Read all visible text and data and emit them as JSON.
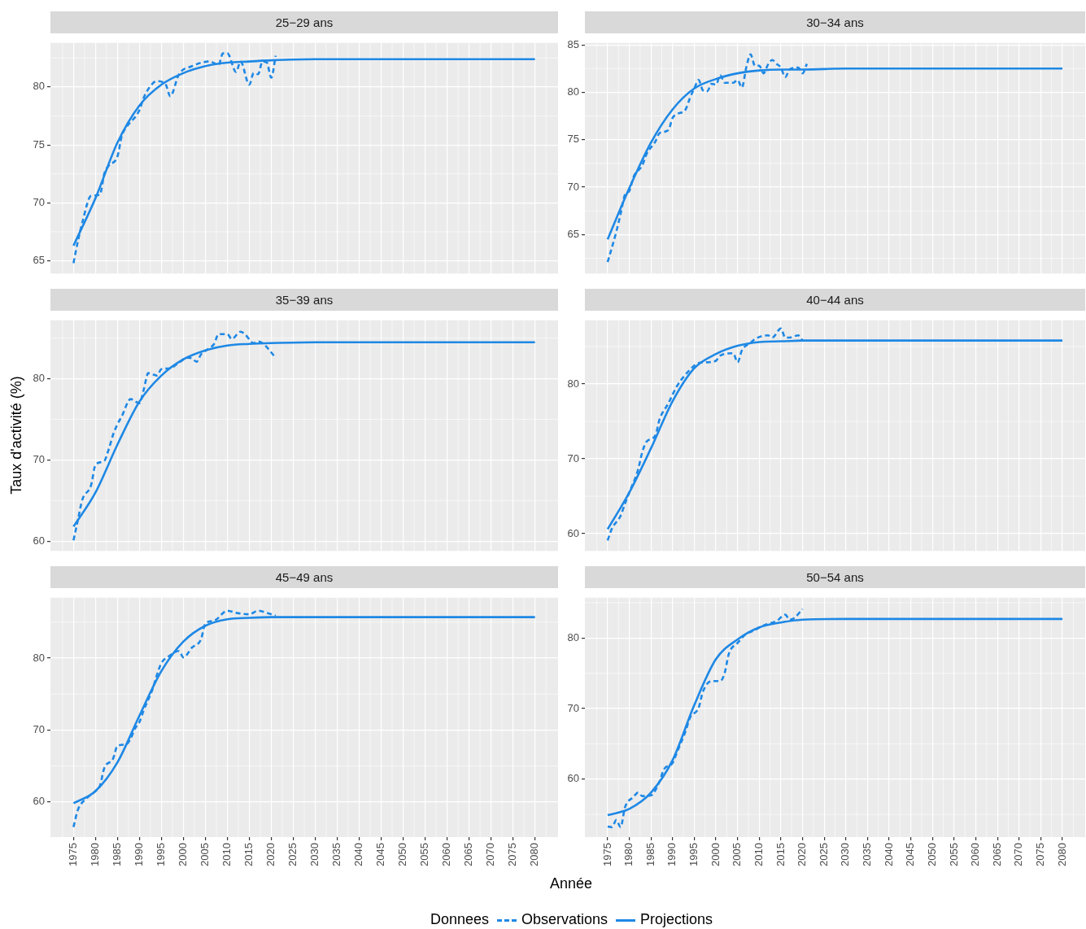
{
  "chart_data": [
    {
      "type": "line",
      "title": "25−29 ans",
      "legend": "bottom",
      "legend_title": "Donnees",
      "xlim": [
        1969.75,
        2085.25
      ],
      "xticks": [
        1975,
        1980,
        1985,
        1990,
        1995,
        2000,
        2005,
        2010,
        2015,
        2020,
        2025,
        2030,
        2035,
        2040,
        2045,
        2050,
        2055,
        2060,
        2065,
        2070,
        2075,
        2080
      ],
      "ylim": [
        63.9,
        83.8
      ],
      "yticks": [
        65,
        70,
        75,
        80
      ],
      "grid": true,
      "tick_labels": "y",
      "series": [
        {
          "name": "Observations",
          "color": "#1e88e5",
          "line_style": "dashed",
          "x": [
            1975,
            1976,
            1977,
            1979,
            1981,
            1982,
            1983,
            1985,
            1986,
            1987,
            1990,
            1991,
            1993,
            1994,
            1996,
            1997,
            1999,
            2002,
            2006,
            2008,
            2009,
            2010,
            2012,
            2013,
            2015,
            2016,
            2017,
            2018,
            2019,
            2020,
            2021
          ],
          "values": [
            64.8,
            66.7,
            68.3,
            70.6,
            70.7,
            72.5,
            73.2,
            74.0,
            75.8,
            76.5,
            78.0,
            79.1,
            80.3,
            80.5,
            80.2,
            79.2,
            81.1,
            81.8,
            82.2,
            81.9,
            82.9,
            82.9,
            81.3,
            82.2,
            80.2,
            81.2,
            81.1,
            82.2,
            82.1,
            80.8,
            82.7
          ]
        },
        {
          "name": "Projections",
          "color": "#1e88e5",
          "line_style": "solid",
          "x": [
            1975,
            1980,
            1985,
            1990,
            1995,
            2000,
            2005,
            2010,
            2015,
            2020,
            2030,
            2050,
            2080
          ],
          "values": [
            66.3,
            70.4,
            75.2,
            78.4,
            80.2,
            81.2,
            81.8,
            82.1,
            82.2,
            82.3,
            82.4,
            82.4,
            82.4
          ]
        }
      ]
    },
    {
      "type": "line",
      "title": "30−34 ans",
      "xlim": [
        1969.75,
        2085.25
      ],
      "xticks": [
        1975,
        1980,
        1985,
        1990,
        1995,
        2000,
        2005,
        2010,
        2015,
        2020,
        2025,
        2030,
        2035,
        2040,
        2045,
        2050,
        2055,
        2060,
        2065,
        2070,
        2075,
        2080
      ],
      "ylim": [
        60.9,
        85.2
      ],
      "yticks": [
        65,
        70,
        75,
        80,
        85
      ],
      "grid": true,
      "tick_labels": "y",
      "series": [
        {
          "color": "#1e88e5",
          "line_style": "dashed",
          "x": [
            1975,
            1977,
            1978,
            1979,
            1980,
            1981,
            1983,
            1984,
            1986,
            1987,
            1989,
            1990,
            1991,
            1993,
            1994,
            1995,
            1996,
            1997,
            1998,
            1999,
            2000,
            2001,
            2002,
            2004,
            2005,
            2006,
            2007,
            2008,
            2009,
            2010,
            2011,
            2012,
            2013,
            2014,
            2015,
            2016,
            2017,
            2019,
            2020,
            2021
          ],
          "values": [
            62.1,
            65.3,
            67.2,
            69.2,
            69.6,
            71.1,
            72.3,
            73.5,
            74.8,
            75.7,
            76.0,
            77.3,
            77.7,
            78.2,
            79.4,
            80.4,
            81.3,
            80.2,
            80.1,
            80.9,
            80.8,
            81.8,
            81.0,
            81.0,
            81.3,
            80.5,
            82.6,
            84.0,
            82.8,
            82.8,
            82.0,
            82.9,
            83.4,
            83.0,
            82.6,
            81.6,
            82.4,
            82.6,
            82.0,
            83.0
          ]
        },
        {
          "color": "#1e88e5",
          "line_style": "solid",
          "x": [
            1975,
            1980,
            1985,
            1990,
            1995,
            2000,
            2005,
            2010,
            2015,
            2020,
            2030,
            2050,
            2080
          ],
          "values": [
            64.5,
            69.9,
            74.7,
            78.2,
            80.4,
            81.4,
            82.0,
            82.3,
            82.4,
            82.4,
            82.5,
            82.5,
            82.5
          ]
        }
      ]
    },
    {
      "type": "line",
      "title": "35−39 ans",
      "ylabel": "Taux d'activité (%)",
      "xlim": [
        1969.75,
        2085.25
      ],
      "xticks": [
        1975,
        1980,
        1985,
        1990,
        1995,
        2000,
        2005,
        2010,
        2015,
        2020,
        2025,
        2030,
        2035,
        2040,
        2045,
        2050,
        2055,
        2060,
        2065,
        2070,
        2075,
        2080
      ],
      "ylim": [
        58.8,
        87.2
      ],
      "yticks": [
        60,
        70,
        80
      ],
      "grid": true,
      "tick_labels": "y",
      "series": [
        {
          "color": "#1e88e5",
          "line_style": "dashed",
          "x": [
            1975,
            1976,
            1977,
            1979,
            1980,
            1982,
            1983,
            1984,
            1985,
            1986,
            1988,
            1990,
            1991,
            1992,
            1994,
            1995,
            1997,
            1999,
            2001,
            2002,
            2003,
            2004,
            2006,
            2007,
            2008,
            2010,
            2011,
            2013,
            2014,
            2016,
            2017,
            2018,
            2021
          ],
          "values": [
            60.1,
            62.6,
            65.1,
            66.9,
            69.4,
            69.9,
            71.3,
            73.1,
            74.4,
            75.4,
            77.5,
            77.0,
            78.7,
            80.7,
            80.4,
            81.2,
            81.3,
            82.0,
            82.6,
            82.5,
            82.1,
            83.0,
            83.8,
            84.3,
            85.5,
            85.5,
            84.9,
            85.8,
            85.5,
            84.4,
            84.6,
            84.4,
            82.6
          ]
        },
        {
          "color": "#1e88e5",
          "line_style": "solid",
          "x": [
            1975,
            1980,
            1985,
            1990,
            1995,
            2000,
            2005,
            2010,
            2015,
            2020,
            2030,
            2050,
            2080
          ],
          "values": [
            61.8,
            66.0,
            71.9,
            77.2,
            80.4,
            82.4,
            83.5,
            84.1,
            84.3,
            84.4,
            84.5,
            84.5,
            84.5
          ]
        }
      ]
    },
    {
      "type": "line",
      "title": "40−44 ans",
      "xlim": [
        1969.75,
        2085.25
      ],
      "xticks": [
        1975,
        1980,
        1985,
        1990,
        1995,
        2000,
        2005,
        2010,
        2015,
        2020,
        2025,
        2030,
        2035,
        2040,
        2045,
        2050,
        2055,
        2060,
        2065,
        2070,
        2075,
        2080
      ],
      "ylim": [
        57.7,
        88.5
      ],
      "yticks": [
        60,
        70,
        80
      ],
      "grid": true,
      "tick_labels": "y",
      "series": [
        {
          "color": "#1e88e5",
          "line_style": "dashed",
          "x": [
            1975,
            1976,
            1978,
            1979,
            1980,
            1982,
            1983,
            1984,
            1986,
            1987,
            1989,
            1991,
            1994,
            1996,
            1998,
            2000,
            2001,
            2004,
            2005,
            2006,
            2008,
            2009,
            2012,
            2013,
            2015,
            2016,
            2017,
            2019,
            2020
          ],
          "values": [
            59.1,
            60.7,
            62.4,
            64.0,
            65.5,
            68.5,
            70.9,
            72.3,
            73.1,
            75.3,
            77.4,
            79.7,
            81.9,
            82.8,
            82.9,
            83.1,
            83.8,
            84.1,
            82.9,
            84.5,
            85.5,
            86.0,
            86.5,
            86.2,
            87.4,
            86.2,
            86.2,
            86.5,
            85.8
          ]
        },
        {
          "color": "#1e88e5",
          "line_style": "solid",
          "x": [
            1975,
            1980,
            1985,
            1990,
            1995,
            2000,
            2005,
            2010,
            2015,
            2020,
            2030,
            2050,
            2080
          ],
          "values": [
            60.6,
            65.5,
            71.4,
            77.7,
            82.1,
            84.0,
            85.1,
            85.6,
            85.7,
            85.8,
            85.8,
            85.8,
            85.8
          ]
        }
      ]
    },
    {
      "type": "line",
      "title": "45−49 ans",
      "xlabel": "Année",
      "xlim": [
        1969.75,
        2085.25
      ],
      "xticks": [
        1975,
        1980,
        1985,
        1990,
        1995,
        2000,
        2005,
        2010,
        2015,
        2020,
        2025,
        2030,
        2035,
        2040,
        2045,
        2050,
        2055,
        2060,
        2065,
        2070,
        2075,
        2080
      ],
      "ylim": [
        55.1,
        88.4
      ],
      "yticks": [
        60,
        70,
        80
      ],
      "grid": true,
      "series": [
        {
          "color": "#1e88e5",
          "line_style": "dashed",
          "x": [
            1975,
            1976,
            1978,
            1980,
            1981,
            1982,
            1984,
            1985,
            1987,
            1988,
            1989,
            1990,
            1991,
            1993,
            1994,
            1995,
            1997,
            1999,
            2000,
            2002,
            2004,
            2005,
            2007,
            2010,
            2012,
            2015,
            2017,
            2019,
            2021
          ],
          "values": [
            56.5,
            58.9,
            60.5,
            61.5,
            62.2,
            64.7,
            66.0,
            67.8,
            68.0,
            68.8,
            70.2,
            71.1,
            72.8,
            75.7,
            77.7,
            79.3,
            80.4,
            81.0,
            80.1,
            81.5,
            82.6,
            84.8,
            85.2,
            86.6,
            86.3,
            86.1,
            86.6,
            86.3,
            85.9
          ]
        },
        {
          "color": "#1e88e5",
          "line_style": "solid",
          "x": [
            1975,
            1980,
            1985,
            1990,
            1995,
            2000,
            2005,
            2010,
            2015,
            2020,
            2030,
            2050,
            2080
          ],
          "values": [
            59.8,
            61.5,
            65.5,
            72.0,
            78.2,
            82.3,
            84.5,
            85.4,
            85.6,
            85.7,
            85.7,
            85.7,
            85.7
          ]
        }
      ]
    },
    {
      "type": "line",
      "title": "50−54 ans",
      "xlim": [
        1969.75,
        2085.25
      ],
      "xticks": [
        1975,
        1980,
        1985,
        1990,
        1995,
        2000,
        2005,
        2010,
        2015,
        2020,
        2025,
        2030,
        2035,
        2040,
        2045,
        2050,
        2055,
        2060,
        2065,
        2070,
        2075,
        2080
      ],
      "ylim": [
        51.8,
        85.7
      ],
      "yticks": [
        60,
        70,
        80
      ],
      "grid": true,
      "series": [
        {
          "color": "#1e88e5",
          "line_style": "dashed",
          "x": [
            1975,
            1976,
            1977,
            1978,
            1979,
            1981,
            1982,
            1983,
            1985,
            1987,
            1988,
            1990,
            1991,
            1993,
            1994,
            1996,
            1997,
            1999,
            2001,
            2002,
            2003,
            2005,
            2007,
            2009,
            2010,
            2012,
            2014,
            2016,
            2017,
            2018,
            2020
          ],
          "values": [
            53.3,
            53.2,
            54.2,
            53.2,
            56.0,
            57.5,
            58.1,
            57.6,
            57.7,
            59.7,
            61.4,
            62.3,
            63.8,
            66.8,
            68.7,
            70.1,
            72.4,
            73.9,
            73.9,
            75.0,
            77.8,
            79.3,
            80.6,
            81.1,
            81.5,
            82.0,
            82.4,
            83.3,
            82.6,
            82.8,
            84.1
          ]
        },
        {
          "color": "#1e88e5",
          "line_style": "solid",
          "x": [
            1975,
            1980,
            1985,
            1990,
            1995,
            2000,
            2005,
            2010,
            2015,
            2020,
            2030,
            2050,
            2080
          ],
          "values": [
            54.9,
            55.8,
            58.1,
            62.7,
            70.5,
            77.0,
            79.8,
            81.5,
            82.2,
            82.6,
            82.7,
            82.7,
            82.7
          ]
        }
      ]
    }
  ]
}
